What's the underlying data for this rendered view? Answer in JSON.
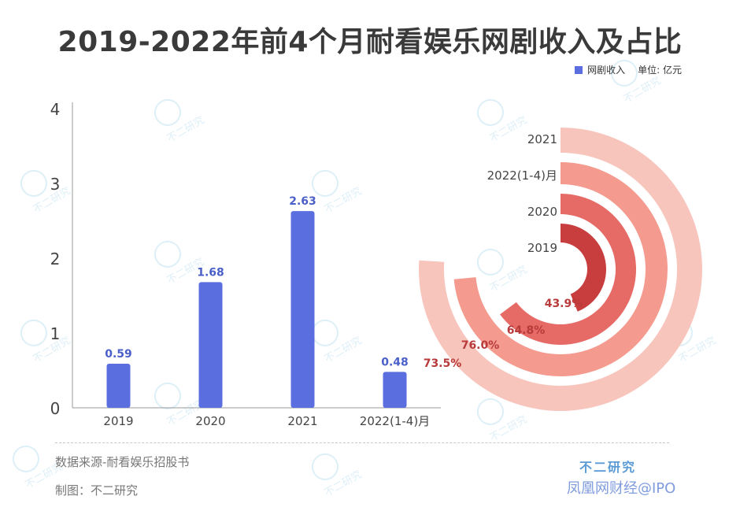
{
  "title": "2019-2022年前4个月耐看娱乐网剧收入及占比",
  "legend": {
    "series_label": "网剧收入",
    "unit_label": "单位: 亿元"
  },
  "footer": {
    "source": "数据来源-耐看娱乐招股书",
    "maker": "制图：不二研究",
    "brand": "不二研究",
    "watermark": "凤凰网财经@IPO"
  },
  "watermark_logo_text": "不二研究",
  "colors": {
    "bar": "#5b6ee0",
    "bar_label": "#4a5fc8",
    "ring_2021": "#f8c5bd",
    "ring_2022": "#f49a8e",
    "ring_2020": "#e66a66",
    "ring_2019": "#c83e3e",
    "pct_label": "#b83a3a"
  },
  "chart_data": [
    {
      "type": "bar",
      "categories": [
        "2019",
        "2020",
        "2021",
        "2022(1-4)月"
      ],
      "series": [
        {
          "name": "网剧收入",
          "values": [
            0.59,
            1.68,
            2.63,
            0.48
          ]
        }
      ],
      "data_labels": [
        "0.59",
        "1.68",
        "2.63",
        "0.48"
      ],
      "y_ticks": [
        "0",
        "1",
        "2",
        "3",
        "4"
      ],
      "ylim": [
        0,
        4
      ],
      "grid": false
    },
    {
      "type": "pie",
      "style": "radial-bar",
      "categories": [
        "2021",
        "2022(1-4)月",
        "2020",
        "2019"
      ],
      "values": [
        76.0,
        73.5,
        64.8,
        43.9
      ],
      "value_labels": [
        "76.0%",
        "73.5%",
        "64.8%",
        "43.9%"
      ]
    }
  ]
}
